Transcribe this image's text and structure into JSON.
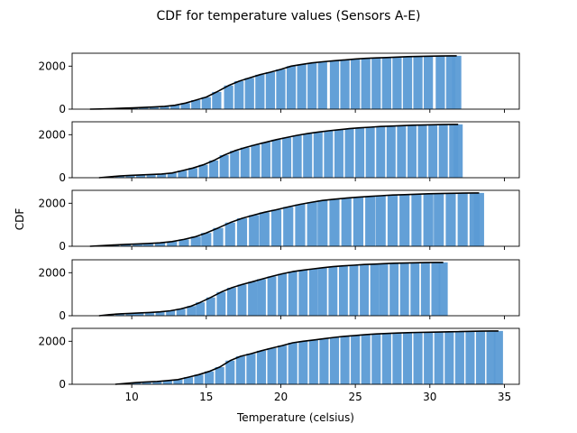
{
  "chart_data": {
    "type": "bar",
    "title": "CDF for temperature values (Sensors A-E)",
    "xlabel": "Temperature (celsius)",
    "ylabel": "CDF",
    "xlim": [
      6,
      36
    ],
    "ylim": [
      0,
      2600
    ],
    "x_ticks": [
      10,
      15,
      20,
      25,
      30,
      35
    ],
    "y_ticks": [
      0,
      2000
    ],
    "bar_color": "#5b9bd5",
    "line_color": "#000000",
    "panels": [
      {
        "x": [
          7.2,
          7.9,
          8.7,
          9.4,
          10.1,
          10.8,
          11.5,
          12.2,
          12.9,
          13.6,
          14.3,
          15.0,
          15.7,
          16.5,
          17.2,
          17.9,
          18.6,
          19.3,
          20.0,
          20.7,
          21.4,
          22.1,
          22.8,
          23.6,
          24.3,
          25.0,
          25.7,
          26.4,
          27.1,
          27.8,
          28.5,
          29.2,
          29.9,
          30.7,
          31.4,
          31.8
        ],
        "values": [
          0,
          10,
          25,
          45,
          60,
          80,
          100,
          130,
          180,
          280,
          420,
          560,
          800,
          1100,
          1300,
          1450,
          1600,
          1720,
          1850,
          2000,
          2080,
          2150,
          2200,
          2250,
          2290,
          2330,
          2360,
          2380,
          2400,
          2420,
          2440,
          2450,
          2460,
          2470,
          2480,
          2480
        ]
      },
      {
        "x": [
          7.8,
          8.5,
          9.2,
          9.9,
          10.6,
          11.3,
          12.0,
          12.7,
          13.4,
          14.1,
          14.8,
          15.5,
          16.2,
          16.9,
          17.6,
          18.3,
          19.0,
          19.7,
          20.4,
          21.1,
          21.8,
          22.5,
          23.2,
          23.9,
          24.6,
          25.3,
          26.0,
          26.7,
          27.4,
          28.1,
          28.8,
          29.5,
          30.2,
          30.9,
          31.6,
          31.9
        ],
        "values": [
          0,
          40,
          80,
          110,
          130,
          150,
          170,
          220,
          330,
          450,
          600,
          800,
          1050,
          1250,
          1400,
          1530,
          1650,
          1770,
          1870,
          1970,
          2050,
          2120,
          2180,
          2230,
          2280,
          2320,
          2350,
          2380,
          2400,
          2420,
          2440,
          2450,
          2460,
          2470,
          2480,
          2480
        ]
      },
      {
        "x": [
          7.2,
          8.0,
          8.8,
          9.6,
          10.4,
          11.1,
          11.9,
          12.7,
          13.5,
          14.3,
          15.0,
          15.8,
          16.6,
          17.4,
          18.2,
          18.9,
          19.7,
          20.5,
          21.3,
          22.1,
          22.8,
          23.6,
          24.4,
          25.2,
          26.0,
          26.7,
          27.5,
          28.3,
          29.1,
          29.9,
          30.6,
          31.4,
          32.2,
          33.0,
          33.3
        ],
        "values": [
          0,
          30,
          60,
          90,
          110,
          130,
          160,
          220,
          320,
          450,
          620,
          850,
          1100,
          1300,
          1450,
          1580,
          1700,
          1830,
          1950,
          2050,
          2130,
          2190,
          2240,
          2280,
          2320,
          2350,
          2380,
          2400,
          2420,
          2440,
          2450,
          2460,
          2470,
          2480,
          2480
        ]
      },
      {
        "x": [
          7.8,
          8.5,
          9.2,
          9.9,
          10.5,
          11.2,
          11.9,
          12.6,
          13.3,
          14.0,
          14.6,
          15.3,
          16.0,
          16.7,
          17.4,
          18.1,
          18.7,
          19.4,
          20.1,
          20.8,
          21.5,
          22.2,
          22.8,
          23.5,
          24.2,
          24.9,
          25.6,
          26.3,
          26.9,
          27.6,
          28.3,
          29.0,
          29.7,
          30.4,
          30.9
        ],
        "values": [
          0,
          50,
          90,
          110,
          130,
          150,
          180,
          230,
          320,
          450,
          620,
          850,
          1100,
          1300,
          1450,
          1580,
          1700,
          1830,
          1950,
          2050,
          2120,
          2180,
          2230,
          2280,
          2320,
          2350,
          2380,
          2400,
          2420,
          2440,
          2450,
          2460,
          2470,
          2480,
          2480
        ]
      },
      {
        "x": [
          8.9,
          9.6,
          10.3,
          11.0,
          11.7,
          12.4,
          13.1,
          13.8,
          14.5,
          15.2,
          15.9,
          16.6,
          17.3,
          18.0,
          18.7,
          19.4,
          20.1,
          20.8,
          21.5,
          22.2,
          22.9,
          23.6,
          24.3,
          25.0,
          25.7,
          26.4,
          27.1,
          27.8,
          28.5,
          29.2,
          29.9,
          30.6,
          31.3,
          32.0,
          32.7,
          33.4,
          34.1,
          34.6
        ],
        "values": [
          0,
          40,
          80,
          110,
          130,
          170,
          220,
          330,
          450,
          600,
          800,
          1100,
          1300,
          1420,
          1560,
          1680,
          1800,
          1930,
          2000,
          2060,
          2120,
          2180,
          2230,
          2270,
          2310,
          2340,
          2360,
          2380,
          2400,
          2410,
          2420,
          2430,
          2440,
          2450,
          2460,
          2470,
          2480,
          2480
        ]
      }
    ]
  }
}
